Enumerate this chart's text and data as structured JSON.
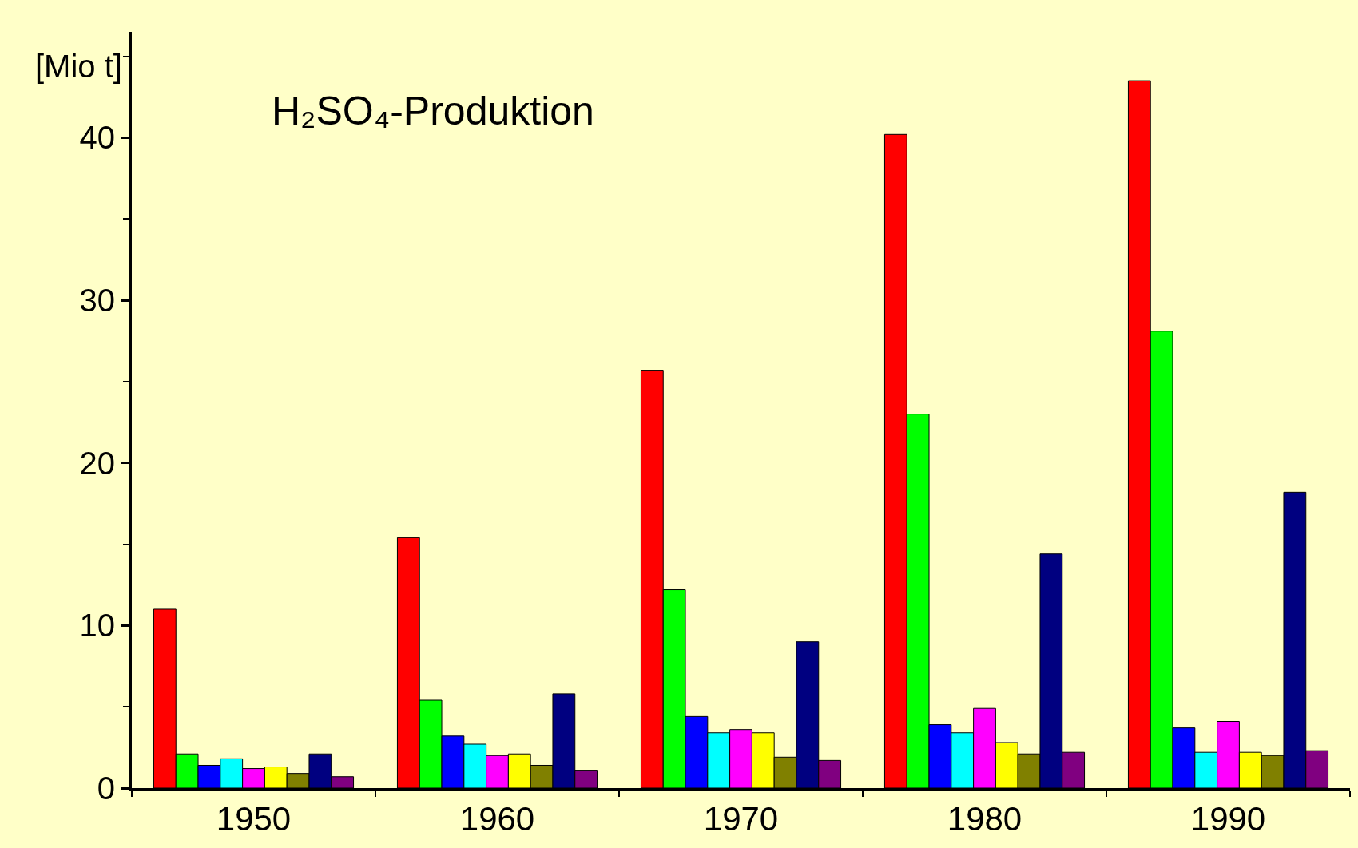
{
  "chart_data": {
    "type": "bar",
    "title": "H₂SO₄-Produktion",
    "ylabel": "[Mio t]",
    "categories": [
      "1950",
      "1960",
      "1970",
      "1980",
      "1990"
    ],
    "series": [
      {
        "color": "#ff0000",
        "values": [
          11.0,
          15.4,
          25.7,
          40.2,
          43.5
        ]
      },
      {
        "color": "#00ff00",
        "values": [
          2.1,
          5.4,
          12.2,
          23.0,
          28.1
        ]
      },
      {
        "color": "#0000ff",
        "values": [
          1.4,
          3.2,
          4.4,
          3.9,
          3.7
        ]
      },
      {
        "color": "#00ffff",
        "values": [
          1.8,
          2.7,
          3.4,
          3.4,
          2.2
        ]
      },
      {
        "color": "#ff00ff",
        "values": [
          1.2,
          2.0,
          3.6,
          4.9,
          4.1
        ]
      },
      {
        "color": "#ffff00",
        "values": [
          1.3,
          2.1,
          3.4,
          2.8,
          2.2
        ]
      },
      {
        "color": "#808000",
        "values": [
          0.9,
          1.4,
          1.9,
          2.1,
          2.0
        ]
      },
      {
        "color": "#000080",
        "values": [
          2.1,
          5.8,
          9.0,
          14.4,
          18.2
        ]
      },
      {
        "color": "#800080",
        "values": [
          0.7,
          1.1,
          1.7,
          2.2,
          2.3
        ]
      }
    ],
    "ylim": [
      0,
      46.5
    ],
    "yticks": [
      0,
      {
        "value": 5,
        "label": null
      },
      10,
      {
        "value": 15,
        "label": null
      },
      20,
      {
        "value": 25,
        "label": null
      },
      30,
      {
        "value": 35,
        "label": null
      },
      40,
      {
        "value": 45,
        "label": null
      }
    ],
    "grid": false
  }
}
